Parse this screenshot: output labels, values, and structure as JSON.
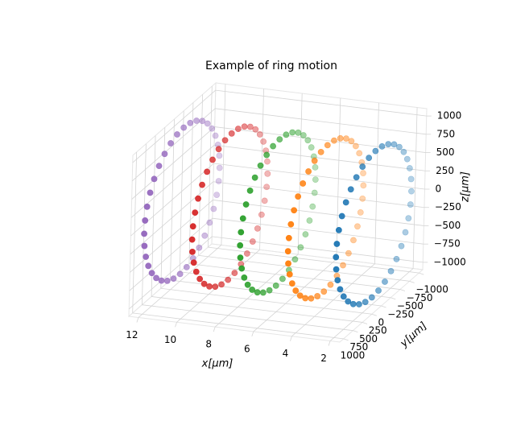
{
  "chart_data": {
    "type": "scatter3d",
    "title": "Example of ring motion",
    "xlabel": "x[μm]",
    "ylabel": "y[μm]",
    "zlabel": "z[μm]",
    "xlim": [
      1.5,
      12.5
    ],
    "ylim": [
      -1100,
      1100
    ],
    "zlim": [
      -1100,
      1100
    ],
    "xticks": [
      2,
      4,
      6,
      8,
      10,
      12
    ],
    "yticks": [
      {
        "value": -1000,
        "label": "−1000"
      },
      {
        "value": -750,
        "label": "−750"
      },
      {
        "value": -500,
        "label": "−500"
      },
      {
        "value": -250,
        "label": "−250"
      },
      0,
      250,
      500,
      750,
      1000
    ],
    "zticks": [
      {
        "value": -1000,
        "label": "−1000"
      },
      {
        "value": -750,
        "label": "−750"
      },
      {
        "value": -500,
        "label": "−500"
      },
      {
        "value": -250,
        "label": "−250"
      },
      0,
      250,
      500,
      750,
      1000
    ],
    "grid": true,
    "series": [
      {
        "color": "#9467bd",
        "x": [
          12,
          12,
          12,
          12,
          12,
          12,
          12,
          12,
          12,
          12,
          12,
          12,
          12,
          12,
          12,
          12,
          12,
          12,
          12,
          12,
          12,
          12,
          12,
          12,
          12,
          12,
          12,
          12,
          12,
          12,
          12,
          12,
          12,
          12,
          12,
          12
        ],
        "y": [
          1000,
          985,
          940,
          866,
          766,
          643,
          500,
          342,
          174,
          0,
          -174,
          -342,
          -500,
          -643,
          -766,
          -866,
          -940,
          -985,
          -1000,
          -985,
          -940,
          -866,
          -766,
          -643,
          -500,
          -342,
          -174,
          0,
          174,
          342,
          500,
          643,
          766,
          866,
          940,
          985
        ],
        "z": [
          0,
          174,
          342,
          500,
          643,
          766,
          866,
          940,
          985,
          1000,
          985,
          940,
          866,
          766,
          643,
          500,
          342,
          174,
          0,
          -174,
          -342,
          -500,
          -643,
          -766,
          -866,
          -940,
          -985,
          -1000,
          -985,
          -940,
          -866,
          -766,
          -643,
          -500,
          -342,
          -174
        ]
      },
      {
        "color": "#d62728",
        "x": [
          9.5,
          9.5,
          9.5,
          9.5,
          9.5,
          9.5,
          9.5,
          9.5,
          9.5,
          9.5,
          9.5,
          9.5,
          9.5,
          9.5,
          9.5,
          9.5,
          9.5,
          9.5,
          9.5,
          9.5,
          9.5,
          9.5,
          9.5,
          9.5,
          9.5,
          9.5,
          9.5,
          9.5,
          9.5,
          9.5,
          9.5,
          9.5,
          9.5,
          9.5,
          9.5,
          9.5
        ],
        "y": [
          1000,
          985,
          940,
          866,
          766,
          643,
          500,
          342,
          174,
          0,
          -174,
          -342,
          -500,
          -643,
          -766,
          -866,
          -940,
          -985,
          -1000,
          -985,
          -940,
          -866,
          -766,
          -643,
          -500,
          -342,
          -174,
          0,
          174,
          342,
          500,
          643,
          766,
          866,
          940,
          985
        ],
        "z": [
          0,
          174,
          342,
          500,
          643,
          766,
          866,
          940,
          985,
          1000,
          985,
          940,
          866,
          766,
          643,
          500,
          342,
          174,
          0,
          -174,
          -342,
          -500,
          -643,
          -766,
          -866,
          -940,
          -985,
          -1000,
          -985,
          -940,
          -866,
          -766,
          -643,
          -500,
          -342,
          -174
        ]
      },
      {
        "color": "#2ca02c",
        "x": [
          7,
          7,
          7,
          7,
          7,
          7,
          7,
          7,
          7,
          7,
          7,
          7,
          7,
          7,
          7,
          7,
          7,
          7,
          7,
          7,
          7,
          7,
          7,
          7,
          7,
          7,
          7,
          7,
          7,
          7,
          7,
          7,
          7,
          7,
          7,
          7
        ],
        "y": [
          1000,
          985,
          940,
          866,
          766,
          643,
          500,
          342,
          174,
          0,
          -174,
          -342,
          -500,
          -643,
          -766,
          -866,
          -940,
          -985,
          -1000,
          -985,
          -940,
          -866,
          -766,
          -643,
          -500,
          -342,
          -174,
          0,
          174,
          342,
          500,
          643,
          766,
          866,
          940,
          985
        ],
        "z": [
          0,
          174,
          342,
          500,
          643,
          766,
          866,
          940,
          985,
          1000,
          985,
          940,
          866,
          766,
          643,
          500,
          342,
          174,
          0,
          -174,
          -342,
          -500,
          -643,
          -766,
          -866,
          -940,
          -985,
          -1000,
          -985,
          -940,
          -866,
          -766,
          -643,
          -500,
          -342,
          -174
        ]
      },
      {
        "color": "#ff7f0e",
        "x": [
          4.5,
          4.5,
          4.5,
          4.5,
          4.5,
          4.5,
          4.5,
          4.5,
          4.5,
          4.5,
          4.5,
          4.5,
          4.5,
          4.5,
          4.5,
          4.5,
          4.5,
          4.5,
          4.5,
          4.5,
          4.5,
          4.5,
          4.5,
          4.5,
          4.5,
          4.5,
          4.5,
          4.5,
          4.5,
          4.5,
          4.5,
          4.5,
          4.5,
          4.5,
          4.5,
          4.5
        ],
        "y": [
          1000,
          985,
          940,
          866,
          766,
          643,
          500,
          342,
          174,
          0,
          -174,
          -342,
          -500,
          -643,
          -766,
          -866,
          -940,
          -985,
          -1000,
          -985,
          -940,
          -866,
          -766,
          -643,
          -500,
          -342,
          -174,
          0,
          174,
          342,
          500,
          643,
          766,
          866,
          940,
          985
        ],
        "z": [
          0,
          174,
          342,
          500,
          643,
          766,
          866,
          940,
          985,
          1000,
          985,
          940,
          866,
          766,
          643,
          500,
          342,
          174,
          0,
          -174,
          -342,
          -500,
          -643,
          -766,
          -866,
          -940,
          -985,
          -1000,
          -985,
          -940,
          -866,
          -766,
          -643,
          -500,
          -342,
          -174
        ]
      },
      {
        "color": "#1f77b4",
        "x": [
          2,
          2,
          2,
          2,
          2,
          2,
          2,
          2,
          2,
          2,
          2,
          2,
          2,
          2,
          2,
          2,
          2,
          2,
          2,
          2,
          2,
          2,
          2,
          2,
          2,
          2,
          2,
          2,
          2,
          2,
          2,
          2,
          2,
          2,
          2,
          2
        ],
        "y": [
          1000,
          985,
          940,
          866,
          766,
          643,
          500,
          342,
          174,
          0,
          -174,
          -342,
          -500,
          -643,
          -766,
          -866,
          -940,
          -985,
          -1000,
          -985,
          -940,
          -866,
          -766,
          -643,
          -500,
          -342,
          -174,
          0,
          174,
          342,
          500,
          643,
          766,
          866,
          940,
          985
        ],
        "z": [
          0,
          174,
          342,
          500,
          643,
          766,
          866,
          940,
          985,
          1000,
          985,
          940,
          866,
          766,
          643,
          500,
          342,
          174,
          0,
          -174,
          -342,
          -500,
          -643,
          -766,
          -866,
          -940,
          -985,
          -1000,
          -985,
          -940,
          -866,
          -766,
          -643,
          -500,
          -342,
          -174
        ]
      }
    ]
  }
}
